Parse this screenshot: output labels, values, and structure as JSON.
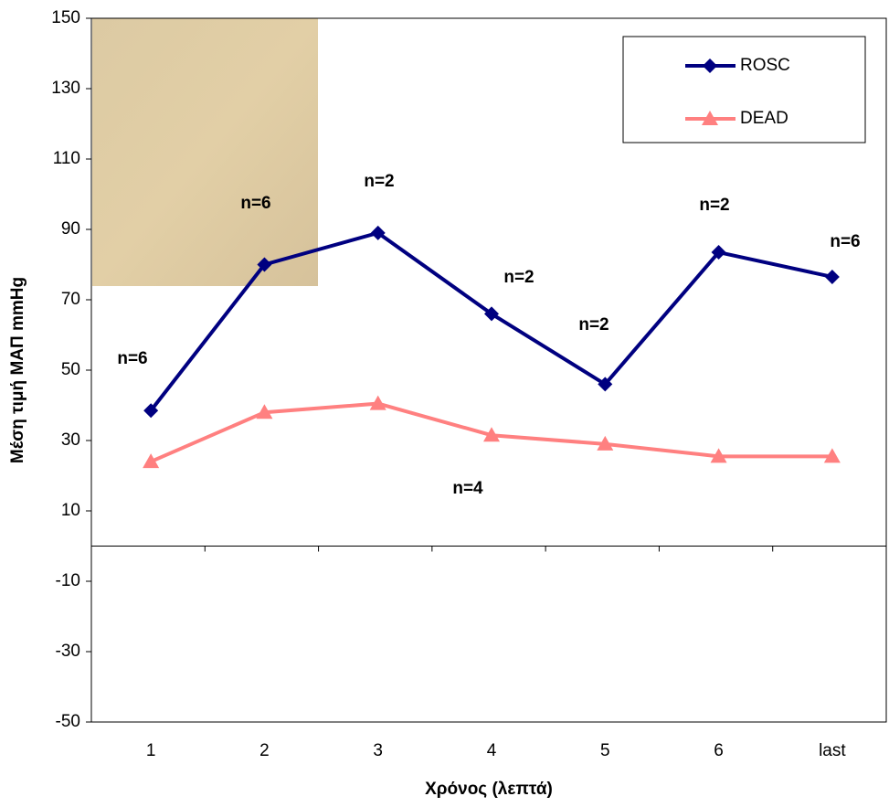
{
  "chart_data": {
    "type": "line",
    "x_label": "Χρόνος (λεπτά)",
    "y_label": "Μέση τιμή ΜΑΠ mmHg",
    "categories": [
      "1",
      "2",
      "3",
      "4",
      "5",
      "6",
      "last"
    ],
    "series": [
      {
        "name": "ROSC",
        "color": "#000080",
        "marker": "diamond",
        "values": [
          38.5,
          80,
          89,
          66,
          46,
          83.5,
          76.5
        ]
      },
      {
        "name": "DEAD",
        "color": "#ff8080",
        "marker": "triangle",
        "values": [
          24,
          38,
          40.5,
          31.5,
          29,
          25.5,
          25.5
        ]
      }
    ],
    "annotations": [
      "n=6",
      "n=6",
      "n=2",
      "n=2",
      "n=2",
      "n=2",
      "n=6",
      "n=4"
    ],
    "ylim": [
      -50,
      150
    ],
    "yticks": [
      -50,
      -30,
      -10,
      10,
      30,
      50,
      70,
      90,
      110,
      130,
      150
    ],
    "grid": false,
    "legend": "top-right"
  }
}
